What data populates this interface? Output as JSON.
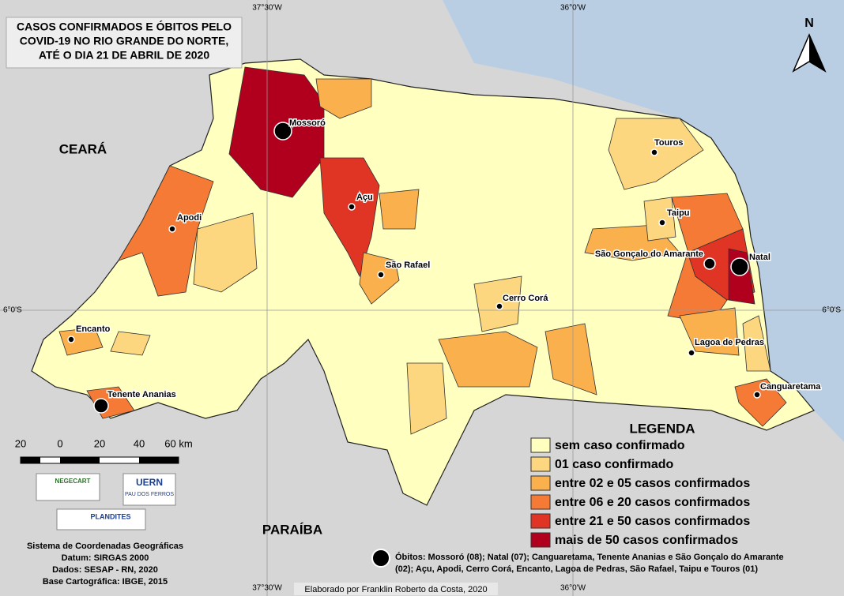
{
  "title": [
    "CASOS CONFIRMADOS E ÓBITOS PELO",
    "COVID-19 NO RIO GRANDE DO NORTE,",
    "ATÉ O DIA 21 DE ABRIL DE 2020"
  ],
  "graticule": {
    "top": [
      "37°30'W",
      "36°0'W"
    ],
    "bottom": [
      "37°30'W",
      "36°0'W"
    ],
    "left": "6°0'S",
    "right": "6°0'S"
  },
  "neighbors": [
    "CEARÁ",
    "PARAÍBA"
  ],
  "north": "N",
  "cities": [
    "Mossoró",
    "Açu",
    "Apodi",
    "São Rafael",
    "Encanto",
    "Tenente Ananias",
    "Cerro Corá",
    "Touros",
    "Taipu",
    "São Gonçalo do Amarante",
    "Natal",
    "Lagoa de Pedras",
    "Canguaretama"
  ],
  "scale": [
    "20",
    "0",
    "20",
    "40",
    "60 km"
  ],
  "logos": [
    "NEGECART",
    "UERN",
    "PAU DOS FERROS",
    "PLANDITES"
  ],
  "info": [
    "Sistema de Coordenadas Geográficas",
    "Datum: SIRGAS 2000",
    "Dados: SESAP - RN, 2020",
    "Base Cartográfica: IBGE, 2015"
  ],
  "legend": {
    "title": "LEGENDA",
    "classes": [
      {
        "label": "sem caso confirmado",
        "color": "#ffffbf"
      },
      {
        "label": "01 caso confirmado",
        "color": "#fdd780"
      },
      {
        "label": "entre 02 e 05 casos confirmados",
        "color": "#fbb04e"
      },
      {
        "label": "entre 06 e 20 casos confirmados",
        "color": "#f47a35"
      },
      {
        "label": "entre 21 e 50 casos confirmados",
        "color": "#e03524"
      },
      {
        "label": "mais de 50 casos confirmados",
        "color": "#b0001e"
      }
    ]
  },
  "deaths_note": [
    "Óbitos: Mossoró (08); Natal (07); Canguaretama, Tenente Ananias  e São Gonçalo do Amarante",
    "(02); Açu, Apodi, Cerro Corá, Encanto, Lagoa de Pedras, São Rafael, Taipu e Touros (01)"
  ],
  "credit": "Elaborado por Franklin Roberto da Costa, 2020"
}
